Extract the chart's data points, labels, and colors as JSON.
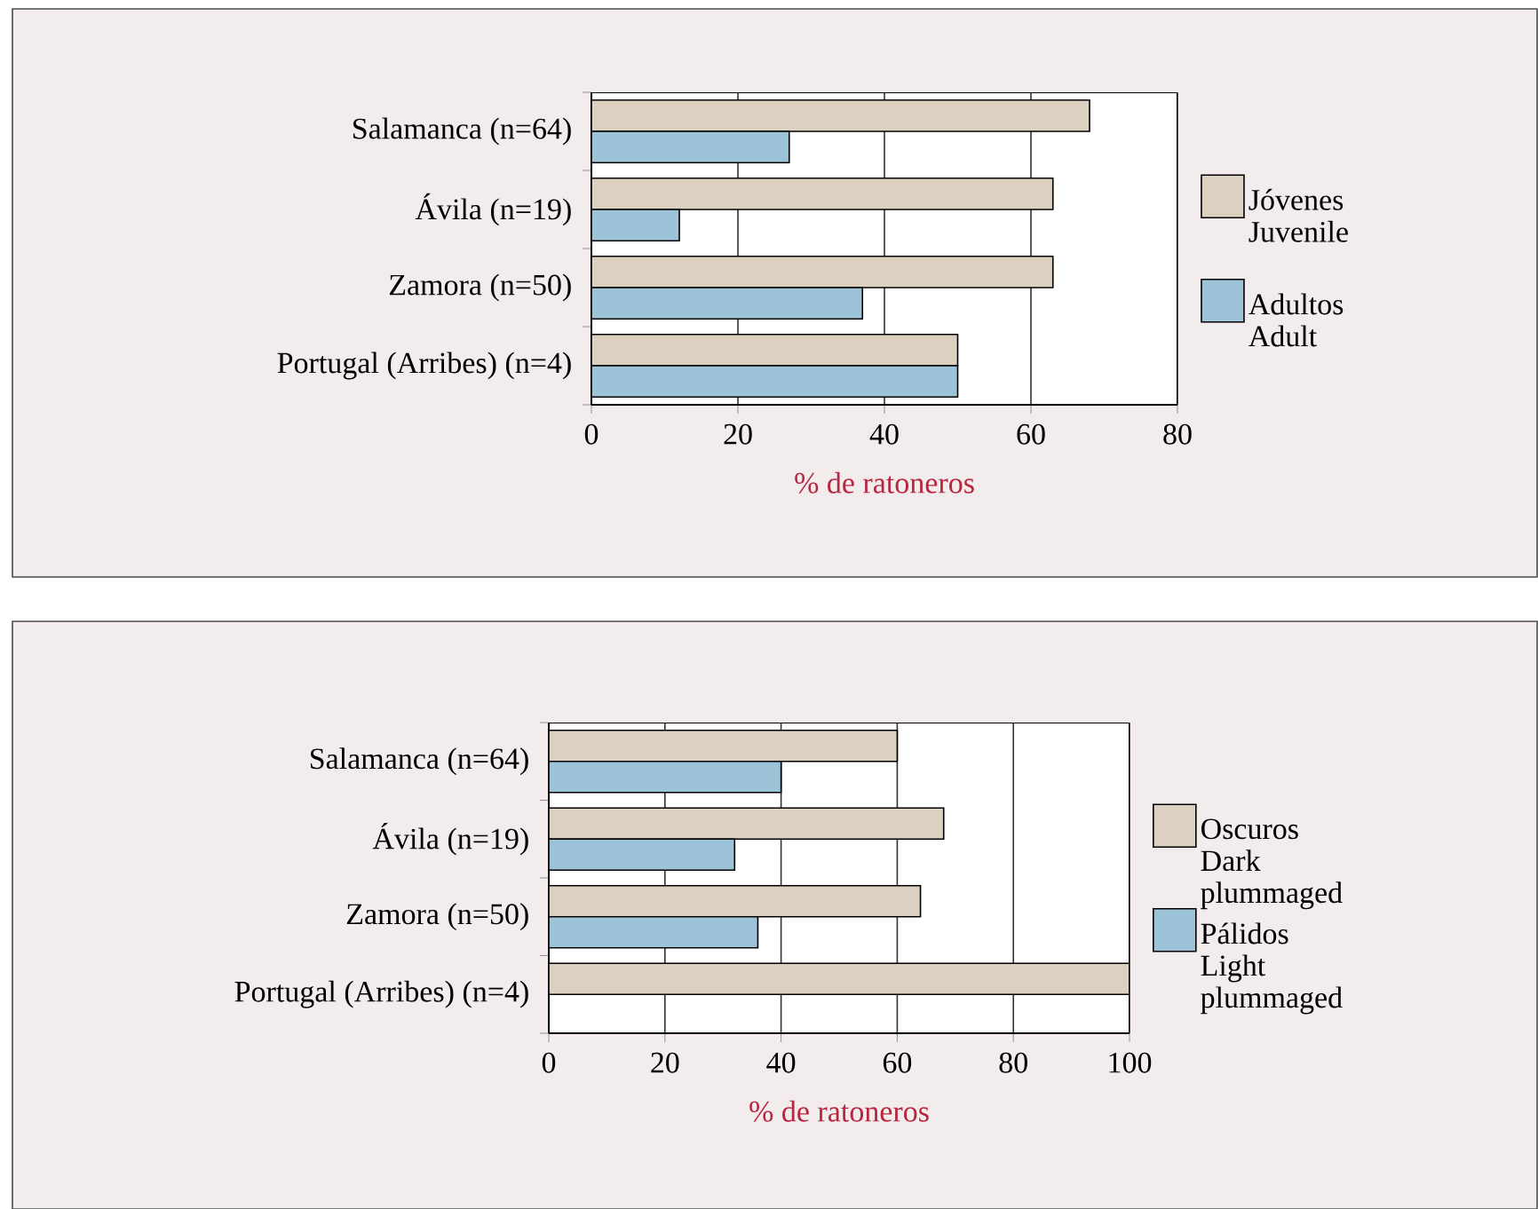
{
  "chart_data": [
    {
      "type": "bar",
      "orientation": "horizontal",
      "categories": [
        "Salamanca (n=64)",
        "Ávila (n=19)",
        "Zamora (n=50)",
        "Portugal (Arribes) (n=4)"
      ],
      "series": [
        {
          "name": "Jóvenes Juvenile",
          "color": "#dcd0c0",
          "values": [
            68,
            63,
            63,
            50
          ]
        },
        {
          "name": "Adultos Adult",
          "color": "#9dc3d9",
          "values": [
            27,
            12,
            37,
            50
          ]
        }
      ],
      "xlabel": "% de ratoneros",
      "xlim": [
        0,
        80
      ],
      "xticks": [
        0,
        20,
        40,
        60,
        80
      ],
      "grid": "x",
      "legend": "right"
    },
    {
      "type": "bar",
      "orientation": "horizontal",
      "categories": [
        "Salamanca (n=64)",
        "Ávila (n=19)",
        "Zamora (n=50)",
        "Portugal (Arribes) (n=4)"
      ],
      "series": [
        {
          "name": "Oscuros Dark plummaged",
          "color": "#dcd0c0",
          "values": [
            60,
            68,
            64,
            100
          ]
        },
        {
          "name": "Pálidos Light plummaged",
          "color": "#9dc3d9",
          "values": [
            40,
            32,
            36,
            0
          ]
        }
      ],
      "xlabel": "% de ratoneros",
      "xlim": [
        0,
        100
      ],
      "xticks": [
        0,
        20,
        40,
        60,
        80,
        100
      ],
      "grid": "x",
      "legend": "right"
    }
  ]
}
